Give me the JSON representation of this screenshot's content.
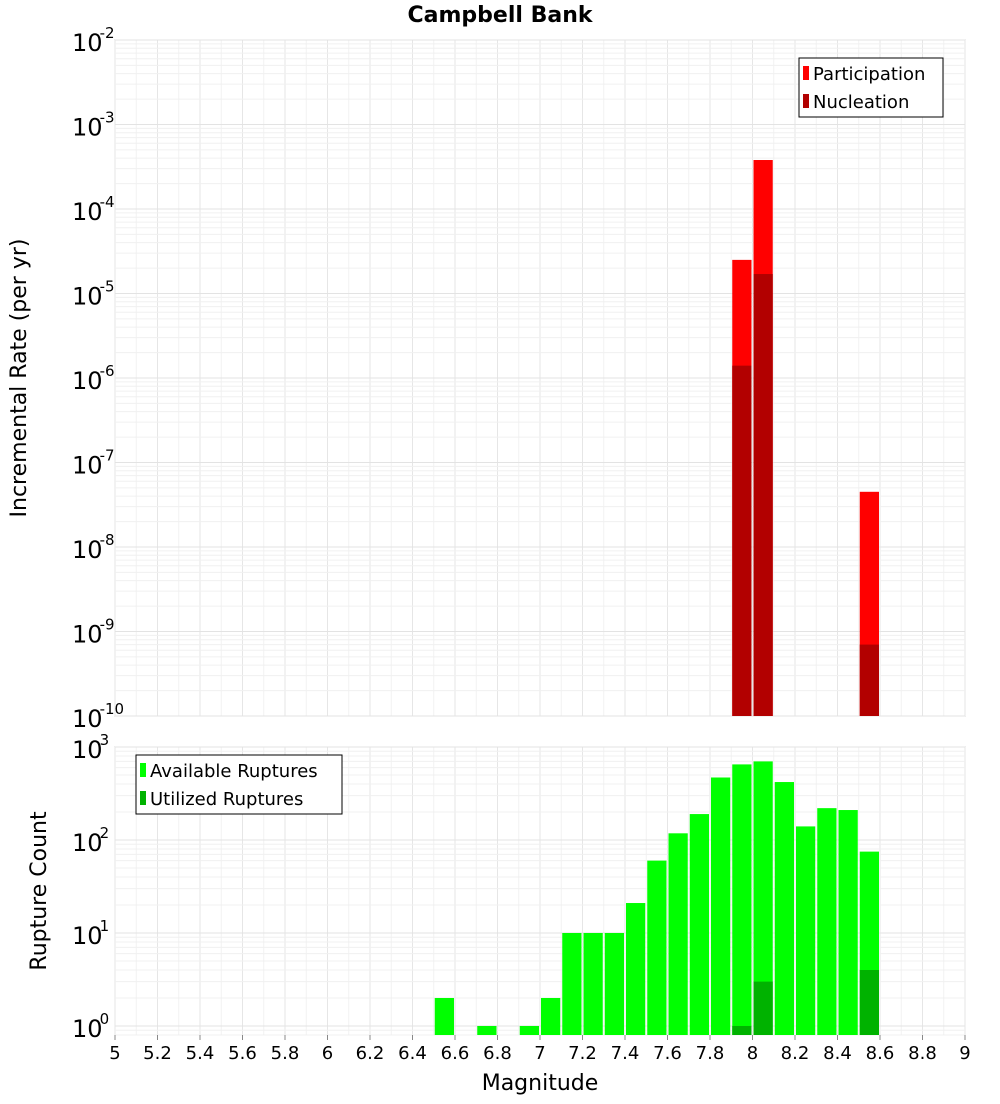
{
  "title": "Campbell Bank",
  "xlabel": "Magnitude",
  "x_ticks": [
    "5",
    "5.2",
    "5.4",
    "5.6",
    "5.8",
    "6",
    "6.2",
    "6.4",
    "6.6",
    "6.8",
    "7",
    "7.2",
    "7.4",
    "7.6",
    "7.8",
    "8",
    "8.2",
    "8.4",
    "8.6",
    "8.8",
    "9"
  ],
  "chart_data": [
    {
      "type": "bar",
      "scale": "log",
      "ylabel": "Incremental Rate (per yr)",
      "xlim": [
        5,
        9
      ],
      "ylim": [
        1e-10,
        0.01
      ],
      "y_ticks": [
        {
          "base": "10",
          "exp": "-10"
        },
        {
          "base": "10",
          "exp": "-9"
        },
        {
          "base": "10",
          "exp": "-8"
        },
        {
          "base": "10",
          "exp": "-7"
        },
        {
          "base": "10",
          "exp": "-6"
        },
        {
          "base": "10",
          "exp": "-5"
        },
        {
          "base": "10",
          "exp": "-4"
        },
        {
          "base": "10",
          "exp": "-3"
        },
        {
          "base": "10",
          "exp": "-2"
        }
      ],
      "grid": true,
      "legend_position": "top-right",
      "series": [
        {
          "name": "Participation",
          "color": "#ff0000",
          "points": [
            {
              "x": 7.95,
              "y": 2.5e-05
            },
            {
              "x": 8.05,
              "y": 0.00038
            },
            {
              "x": 8.55,
              "y": 4.5e-08
            }
          ]
        },
        {
          "name": "Nucleation",
          "color": "#b20000",
          "points": [
            {
              "x": 7.95,
              "y": 1.4e-06
            },
            {
              "x": 8.05,
              "y": 1.7e-05
            },
            {
              "x": 8.55,
              "y": 7e-10
            }
          ]
        }
      ]
    },
    {
      "type": "bar",
      "scale": "log",
      "ylabel": "Rupture Count",
      "xlim": [
        5,
        9
      ],
      "ylim": [
        0.8,
        1000
      ],
      "y_ticks": [
        {
          "base": "10",
          "exp": "0"
        },
        {
          "base": "10",
          "exp": "1"
        },
        {
          "base": "10",
          "exp": "2"
        },
        {
          "base": "10",
          "exp": "3"
        }
      ],
      "grid": true,
      "legend_position": "top-left",
      "series": [
        {
          "name": "Available Ruptures",
          "color": "#00ff00",
          "points": [
            {
              "x": 6.55,
              "y": 2
            },
            {
              "x": 6.75,
              "y": 1
            },
            {
              "x": 6.95,
              "y": 1
            },
            {
              "x": 7.05,
              "y": 2
            },
            {
              "x": 7.15,
              "y": 10
            },
            {
              "x": 7.25,
              "y": 10
            },
            {
              "x": 7.35,
              "y": 10
            },
            {
              "x": 7.45,
              "y": 21
            },
            {
              "x": 7.55,
              "y": 60
            },
            {
              "x": 7.65,
              "y": 118
            },
            {
              "x": 7.75,
              "y": 190
            },
            {
              "x": 7.85,
              "y": 470
            },
            {
              "x": 7.95,
              "y": 650
            },
            {
              "x": 8.05,
              "y": 700
            },
            {
              "x": 8.15,
              "y": 420
            },
            {
              "x": 8.25,
              "y": 140
            },
            {
              "x": 8.35,
              "y": 220
            },
            {
              "x": 8.45,
              "y": 210
            },
            {
              "x": 8.55,
              "y": 75
            }
          ]
        },
        {
          "name": "Utilized Ruptures",
          "color": "#00b200",
          "points": [
            {
              "x": 7.95,
              "y": 1
            },
            {
              "x": 8.05,
              "y": 3
            },
            {
              "x": 8.55,
              "y": 4
            }
          ]
        }
      ]
    }
  ]
}
